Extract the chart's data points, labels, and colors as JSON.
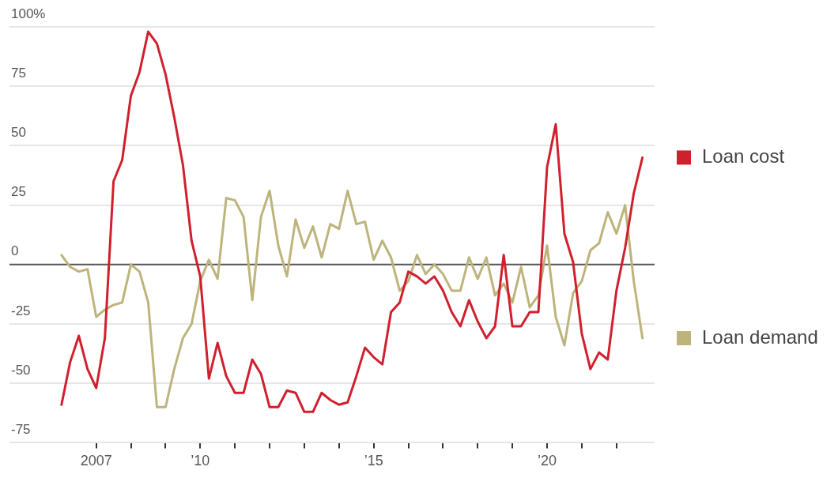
{
  "chart_data": {
    "type": "line",
    "x": [
      2006,
      2006.25,
      2006.5,
      2006.75,
      2007,
      2007.25,
      2007.5,
      2007.75,
      2008,
      2008.25,
      2008.5,
      2008.75,
      2009,
      2009.25,
      2009.5,
      2009.75,
      2010,
      2010.25,
      2010.5,
      2010.75,
      2011,
      2011.25,
      2011.5,
      2011.75,
      2012,
      2012.25,
      2012.5,
      2012.75,
      2013,
      2013.25,
      2013.5,
      2013.75,
      2014,
      2014.25,
      2014.5,
      2014.75,
      2015,
      2015.25,
      2015.5,
      2015.75,
      2016,
      2016.25,
      2016.5,
      2016.75,
      2017,
      2017.25,
      2017.5,
      2017.75,
      2018,
      2018.25,
      2018.5,
      2018.75,
      2019,
      2019.25,
      2019.5,
      2019.75,
      2020,
      2020.25,
      2020.5,
      2020.75,
      2021,
      2021.25,
      2021.5,
      2021.75,
      2022,
      2022.25,
      2022.5,
      2022.75
    ],
    "series": [
      {
        "name": "Loan cost",
        "color": "#d0202e",
        "values": [
          -59,
          -41,
          -30,
          -44,
          -52,
          -31,
          35,
          44,
          71,
          81,
          98,
          93,
          80,
          62,
          42,
          10,
          -5,
          -48,
          -33,
          -47,
          -54,
          -54,
          -40,
          -46,
          -60,
          -60,
          -53,
          -54,
          -62,
          -62,
          -54,
          -57,
          -59,
          -58,
          -47,
          -35,
          -39,
          -42,
          -20,
          -16,
          -3,
          -5,
          -8,
          -5,
          -11,
          -20,
          -26,
          -15,
          -24,
          -31,
          -26,
          4,
          -26,
          -26,
          -20,
          -20,
          41,
          59,
          13,
          1,
          -29,
          -44,
          -37,
          -40,
          -11,
          7,
          30,
          45
        ]
      },
      {
        "name": "Loan demand",
        "color": "#bdb47c",
        "values": [
          4,
          -1,
          -3,
          -2,
          -22,
          -19,
          -17,
          -16,
          0,
          -3,
          -16,
          -60,
          -60,
          -44,
          -31,
          -25,
          -7,
          2,
          -6,
          28,
          27,
          20,
          -15,
          20,
          31,
          8,
          -5,
          19,
          7,
          16,
          3,
          17,
          15,
          31,
          17,
          18,
          2,
          10,
          3,
          -11,
          -7,
          4,
          -4,
          0,
          -4,
          -11,
          -11,
          3,
          -6,
          3,
          -13,
          -8,
          -16,
          -1,
          -18,
          -13,
          8,
          -22,
          -34,
          -12,
          -7,
          6,
          9,
          22,
          13,
          25,
          -7,
          -31
        ]
      }
    ],
    "xlim": [
      2004.5,
      2023.1
    ],
    "xticks": [
      {
        "value": 2007,
        "label": "2007"
      },
      {
        "value": 2008,
        "label": null
      },
      {
        "value": 2009,
        "label": null
      },
      {
        "value": 2010,
        "label": "’10"
      },
      {
        "value": 2011,
        "label": null
      },
      {
        "value": 2012,
        "label": null
      },
      {
        "value": 2013,
        "label": null
      },
      {
        "value": 2014,
        "label": null
      },
      {
        "value": 2015,
        "label": "’15"
      },
      {
        "value": 2016,
        "label": null
      },
      {
        "value": 2017,
        "label": null
      },
      {
        "value": 2018,
        "label": null
      },
      {
        "value": 2019,
        "label": null
      },
      {
        "value": 2020,
        "label": "’20"
      },
      {
        "value": 2021,
        "label": null
      },
      {
        "value": 2022,
        "label": null
      }
    ],
    "ylim": [
      -75,
      100
    ],
    "yticks": [
      {
        "value": 100,
        "label": "100%"
      },
      -75,
      -50,
      -25,
      0,
      25,
      50,
      75
    ],
    "ref_lines": [
      {
        "axis": "y",
        "value": 0,
        "color": "#555555"
      }
    ],
    "grid": "y",
    "legend": "right",
    "marker": "none",
    "line_style": "solid"
  }
}
